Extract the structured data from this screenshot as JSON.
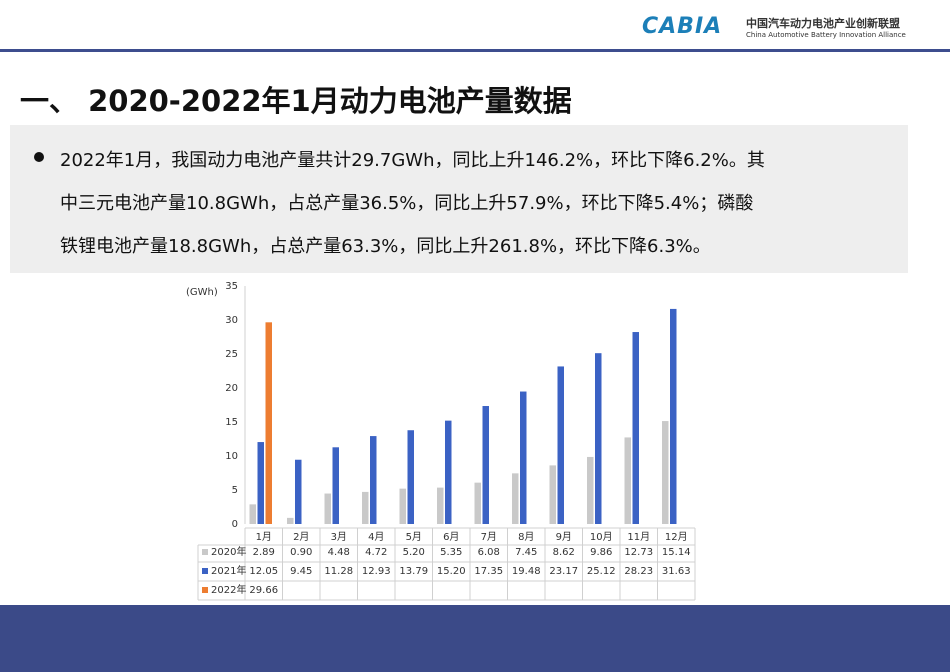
{
  "header": {
    "logo": "CABIA",
    "org_cn": "中国汽车动力电池产业创新联盟",
    "org_en": "China Automotive Battery Innovation Alliance"
  },
  "title": "一、 2020-2022年1月动力电池产量数据",
  "bullet": [
    "2022年1月，我国动力电池产量共计29.7GWh，同比上升146.2%，环比下降6.2%。其",
    "中三元电池产量10.8GWh，占总产量36.5%，同比上升57.9%，环比下降5.4%；磷酸",
    "铁锂电池产量18.8GWh，占总产量63.3%，同比上升261.8%，环比下降6.3%。"
  ],
  "chart_data": {
    "type": "bar",
    "y_label": "(GWh)",
    "categories": [
      "1月",
      "2月",
      "3月",
      "4月",
      "5月",
      "6月",
      "7月",
      "8月",
      "9月",
      "10月",
      "11月",
      "12月"
    ],
    "series": [
      {
        "name": "2020年",
        "color": "#c9c9c9",
        "values": [
          2.89,
          0.9,
          4.48,
          4.72,
          5.2,
          5.35,
          6.08,
          7.45,
          8.62,
          9.86,
          12.73,
          15.14
        ],
        "value_labels": [
          "2.89",
          "0.90",
          "4.48",
          "4.72",
          "5.20",
          "5.35",
          "6.08",
          "7.45",
          "8.62",
          "9.86",
          "12.73",
          "15.14"
        ]
      },
      {
        "name": "2021年",
        "color": "#3b62c4",
        "values": [
          12.05,
          9.45,
          11.28,
          12.93,
          13.79,
          15.2,
          17.35,
          19.48,
          23.17,
          25.12,
          28.23,
          31.63
        ],
        "value_labels": [
          "12.05",
          "9.45",
          "11.28",
          "12.93",
          "13.79",
          "15.20",
          "17.35",
          "19.48",
          "23.17",
          "25.12",
          "28.23",
          "31.63"
        ]
      },
      {
        "name": "2022年",
        "color": "#ed7d31",
        "values": [
          29.66,
          null,
          null,
          null,
          null,
          null,
          null,
          null,
          null,
          null,
          null,
          null
        ],
        "value_labels": [
          "29.66",
          null,
          null,
          null,
          null,
          null,
          null,
          null,
          null,
          null,
          null,
          null
        ]
      }
    ],
    "ylim": [
      0,
      35
    ],
    "yticks": [
      0,
      5,
      10,
      15,
      20,
      25,
      30,
      35
    ],
    "grid": false
  }
}
